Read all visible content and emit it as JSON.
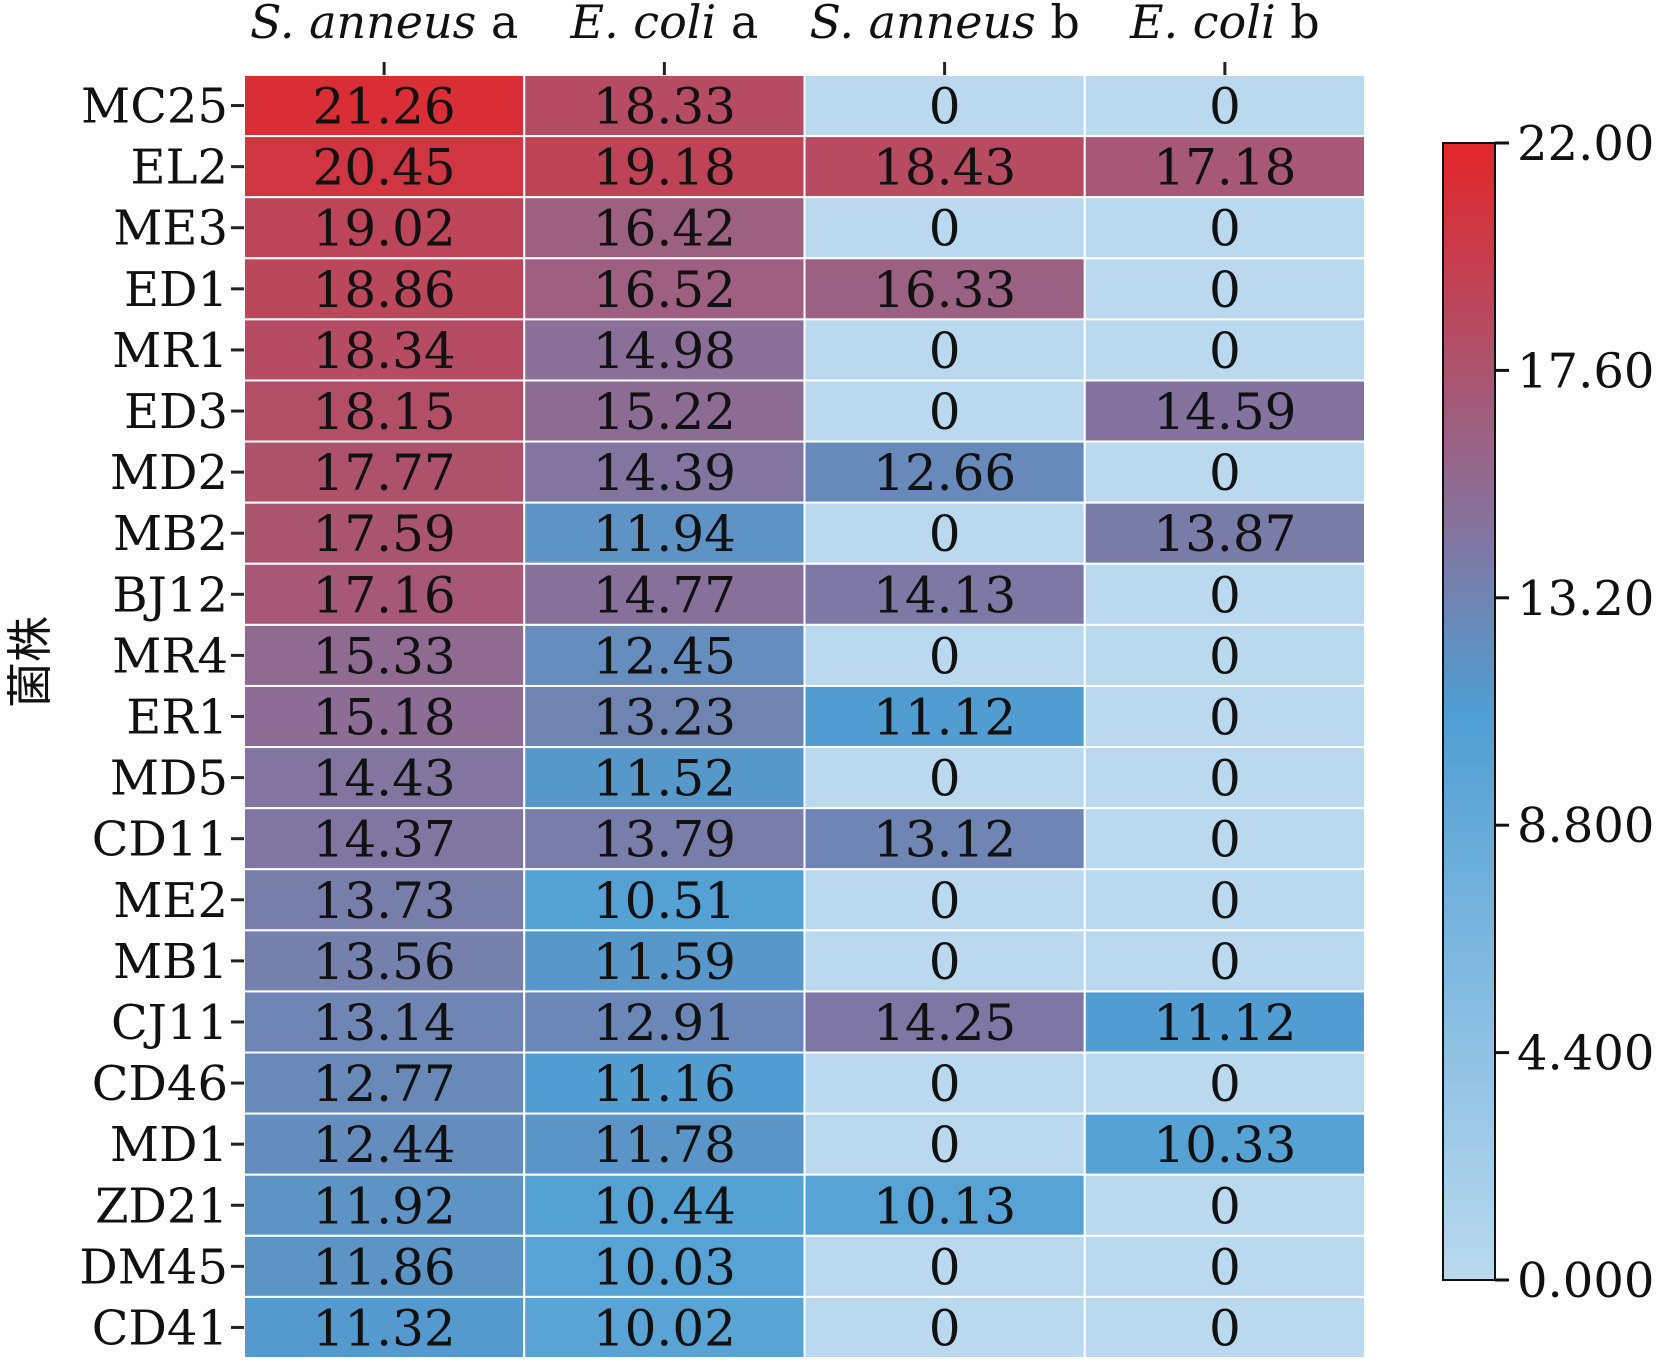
{
  "chart_data": {
    "type": "heatmap",
    "ylabel": "菌株",
    "columns": [
      {
        "italic": "S. anneus",
        "suffix": " a"
      },
      {
        "italic": "E. coli",
        "suffix": " a"
      },
      {
        "italic": "S. anneus",
        "suffix": " b"
      },
      {
        "italic": "E. coli",
        "suffix": " b"
      }
    ],
    "rows": [
      "MC25",
      "EL2",
      "ME3",
      "ED1",
      "MR1",
      "ED3",
      "MD2",
      "MB2",
      "BJ12",
      "MR4",
      "ER1",
      "MD5",
      "CD11",
      "ME2",
      "MB1",
      "CJ11",
      "CD46",
      "MD1",
      "ZD21",
      "DM45",
      "CD41"
    ],
    "values": [
      [
        21.26,
        18.33,
        0,
        0
      ],
      [
        20.45,
        19.18,
        18.43,
        17.18
      ],
      [
        19.02,
        16.42,
        0,
        0
      ],
      [
        18.86,
        16.52,
        16.33,
        0
      ],
      [
        18.34,
        14.98,
        0,
        0
      ],
      [
        18.15,
        15.22,
        0,
        14.59
      ],
      [
        17.77,
        14.39,
        12.66,
        0
      ],
      [
        17.59,
        11.94,
        0,
        13.87
      ],
      [
        17.16,
        14.77,
        14.13,
        0
      ],
      [
        15.33,
        12.45,
        0,
        0
      ],
      [
        15.18,
        13.23,
        11.12,
        0
      ],
      [
        14.43,
        11.52,
        0,
        0
      ],
      [
        14.37,
        13.79,
        13.12,
        0
      ],
      [
        13.73,
        10.51,
        0,
        0
      ],
      [
        13.56,
        11.59,
        0,
        0
      ],
      [
        13.14,
        12.91,
        14.25,
        11.12
      ],
      [
        12.77,
        11.16,
        0,
        0
      ],
      [
        12.44,
        11.78,
        0,
        10.33
      ],
      [
        11.92,
        10.44,
        10.13,
        0
      ],
      [
        11.86,
        10.03,
        0,
        0
      ],
      [
        11.32,
        10.02,
        0,
        0
      ]
    ],
    "cell_labels": [
      [
        "21.26",
        "18.33",
        "0",
        "0"
      ],
      [
        "20.45",
        "19.18",
        "18.43",
        "17.18"
      ],
      [
        "19.02",
        "16.42",
        "0",
        "0"
      ],
      [
        "18.86",
        "16.52",
        "16.33",
        "0"
      ],
      [
        "18.34",
        "14.98",
        "0",
        "0"
      ],
      [
        "18.15",
        "15.22",
        "0",
        "14.59"
      ],
      [
        "17.77",
        "14.39",
        "12.66",
        "0"
      ],
      [
        "17.59",
        "11.94",
        "0",
        "13.87"
      ],
      [
        "17.16",
        "14.77",
        "14.13",
        "0"
      ],
      [
        "15.33",
        "12.45",
        "0",
        "0"
      ],
      [
        "15.18",
        "13.23",
        "11.12",
        "0"
      ],
      [
        "14.43",
        "11.52",
        "0",
        "0"
      ],
      [
        "14.37",
        "13.79",
        "13.12",
        "0"
      ],
      [
        "13.73",
        "10.51",
        "0",
        "0"
      ],
      [
        "13.56",
        "11.59",
        "0",
        "0"
      ],
      [
        "13.14",
        "12.91",
        "14.25",
        "11.12"
      ],
      [
        "12.77",
        "11.16",
        "0",
        "0"
      ],
      [
        "12.44",
        "11.78",
        "0",
        "10.33"
      ],
      [
        "11.92",
        "10.44",
        "10.13",
        "0"
      ],
      [
        "11.86",
        "10.03",
        "0",
        "0"
      ],
      [
        "11.32",
        "10.02",
        "0",
        "0"
      ]
    ],
    "colorbar": {
      "min": 0,
      "max": 22,
      "ticks": [
        "22.00",
        "17.60",
        "13.20",
        "8.800",
        "4.400",
        "0.000"
      ],
      "tick_values": [
        22,
        17.6,
        13.2,
        8.8,
        4.4,
        0
      ],
      "colors": [
        "#bad9ee",
        "#4f9ed3",
        "#8a6f98",
        "#e3262a"
      ],
      "color_stops": [
        0,
        0.5,
        0.68,
        1
      ]
    },
    "x_axis_position": "top",
    "grid": true
  }
}
